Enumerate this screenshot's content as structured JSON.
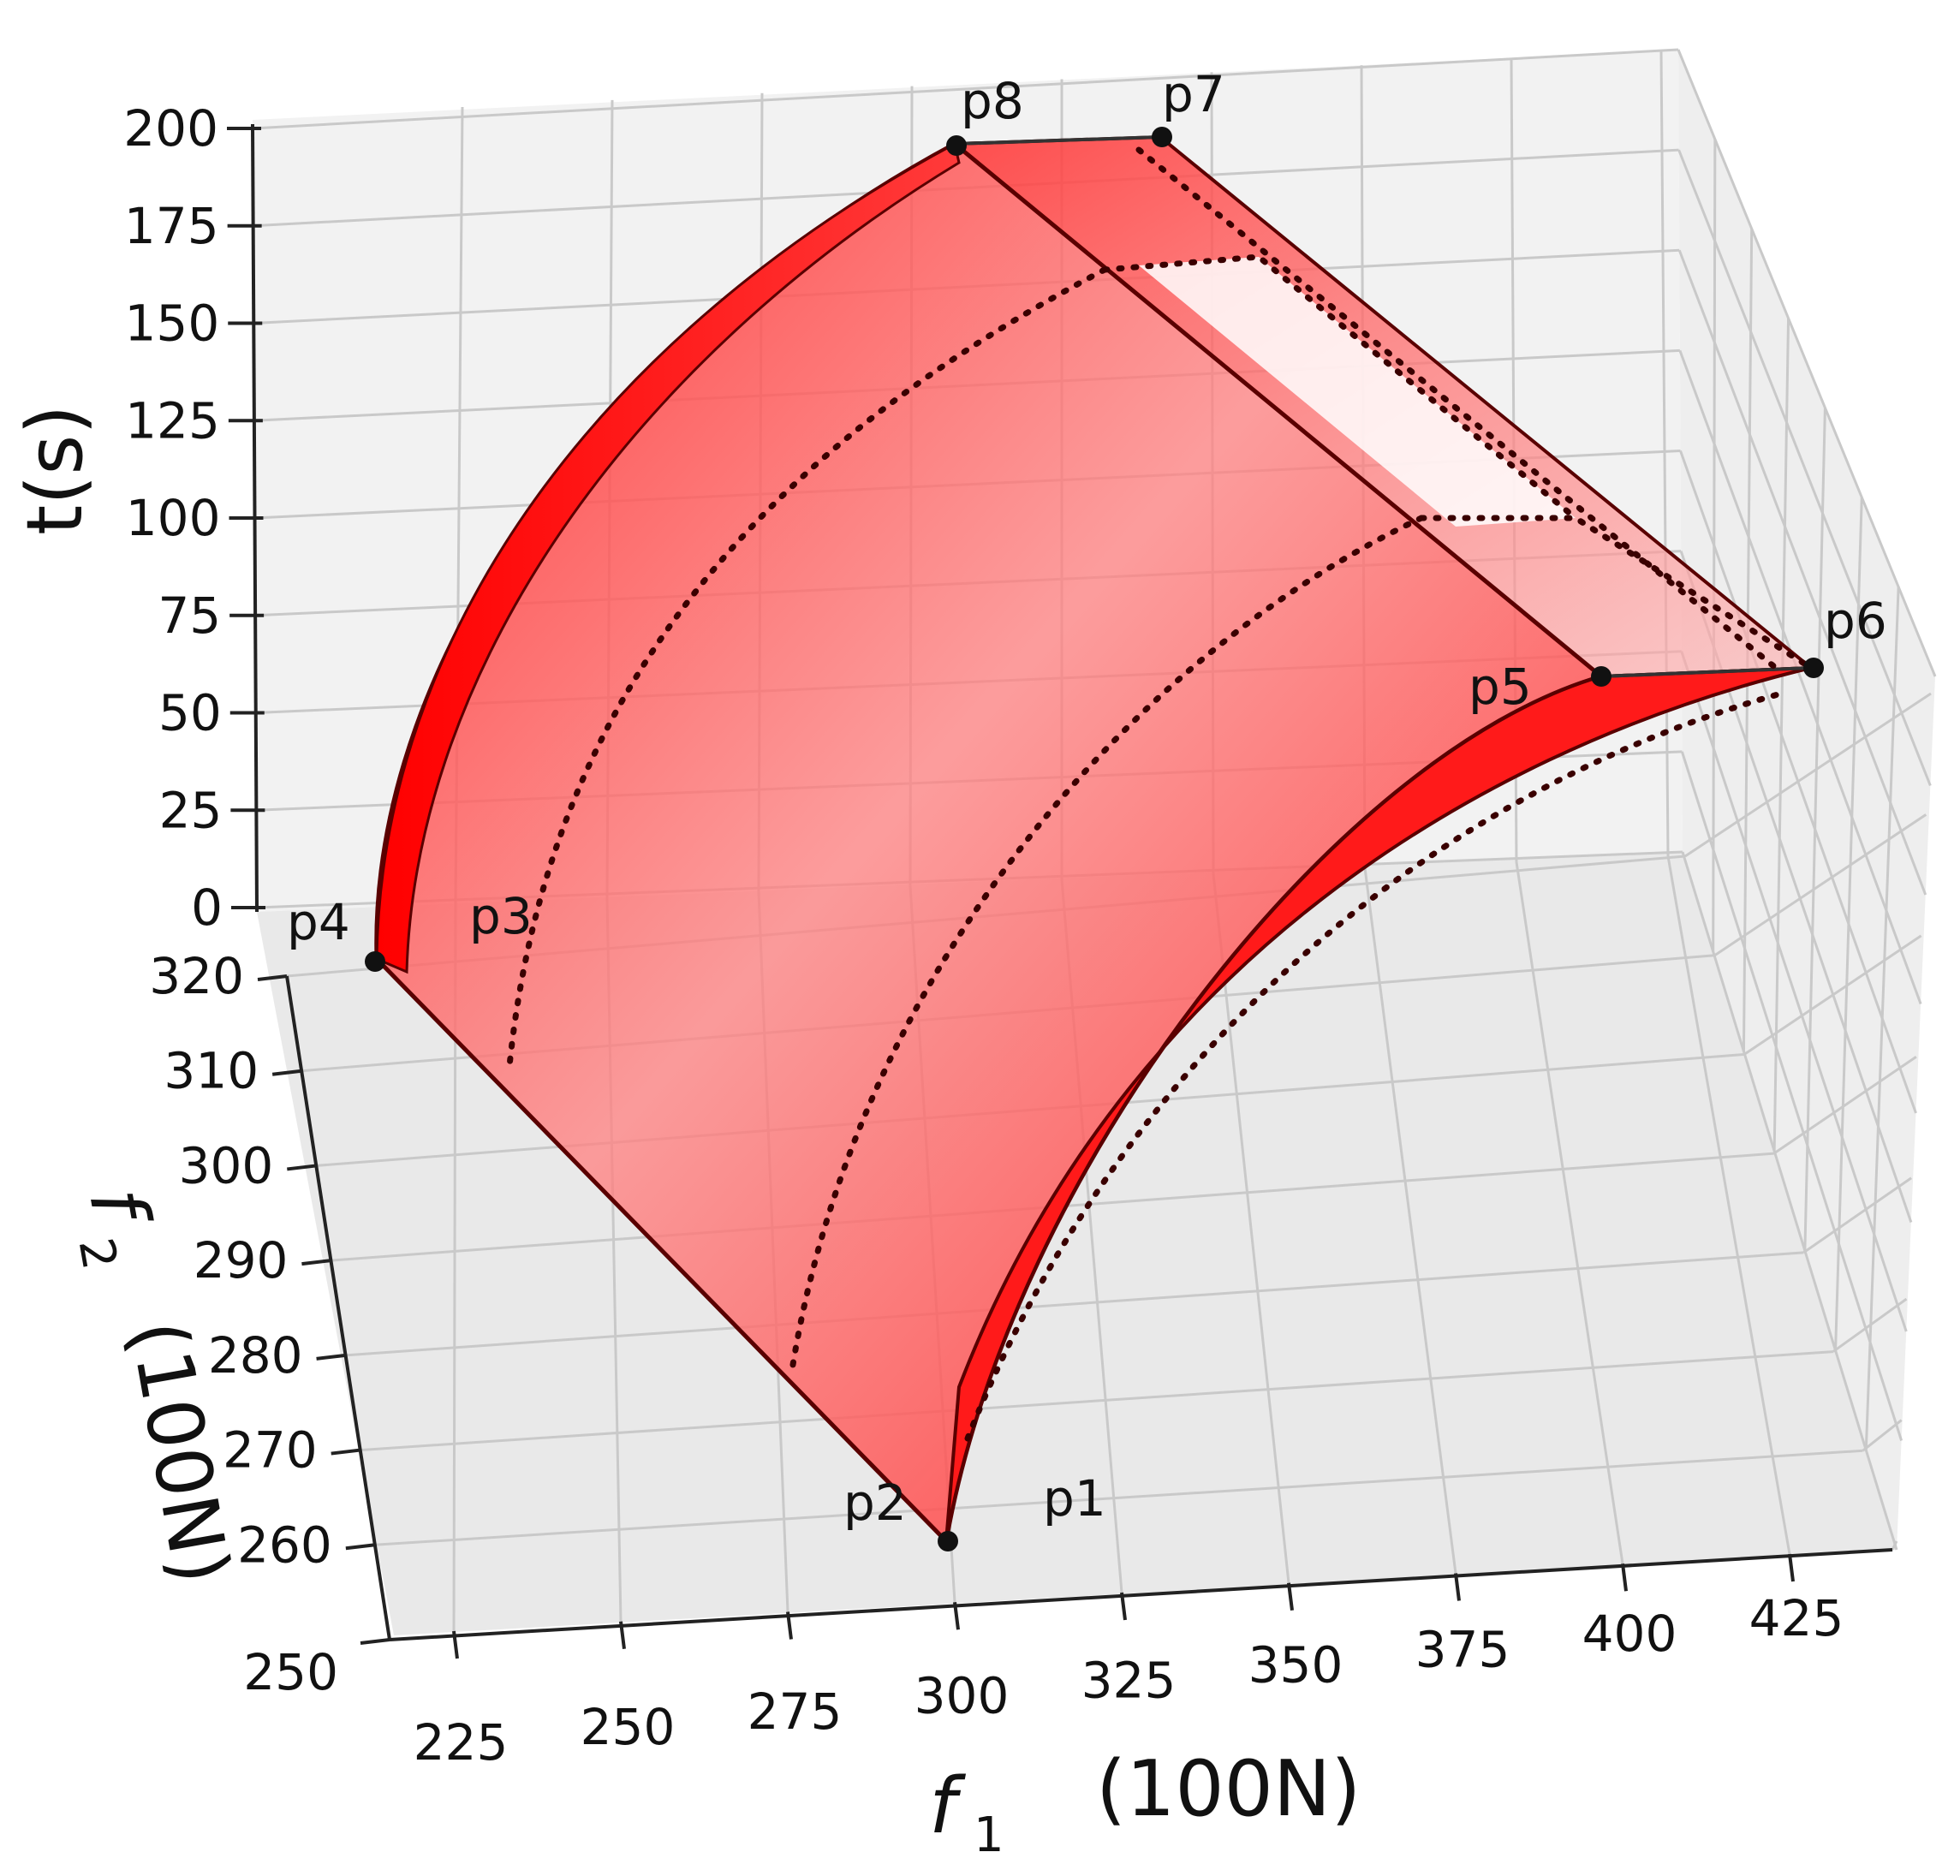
{
  "chart_data": {
    "type": "surface-3d",
    "axes": {
      "x": {
        "label_symbol": "f",
        "label_sub": "1",
        "label_unit": "(100N)",
        "ticks": [
          "225",
          "250",
          "275",
          "300",
          "325",
          "350",
          "375",
          "400",
          "425"
        ]
      },
      "y": {
        "label_symbol": "f",
        "label_sub": "2",
        "label_unit": "(100N)",
        "ticks": [
          "250",
          "260",
          "270",
          "280",
          "290",
          "300",
          "310",
          "320"
        ]
      },
      "z": {
        "label": "t(s)",
        "ticks": [
          "0",
          "25",
          "50",
          "75",
          "100",
          "125",
          "150",
          "175",
          "200"
        ]
      }
    },
    "points": [
      {
        "name": "p1"
      },
      {
        "name": "p2"
      },
      {
        "name": "p3"
      },
      {
        "name": "p4"
      },
      {
        "name": "p5"
      },
      {
        "name": "p6"
      },
      {
        "name": "p7"
      },
      {
        "name": "p8"
      }
    ],
    "surface_color": "#ff1a1a",
    "grid": true,
    "panes_color": "#f0f0f0"
  }
}
